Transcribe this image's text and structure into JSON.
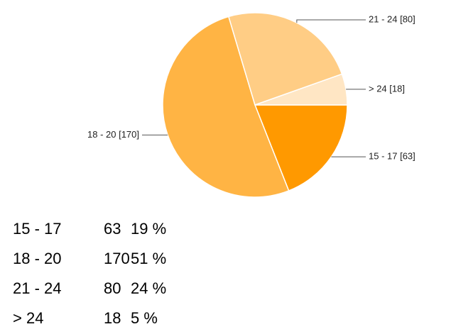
{
  "chart_data": {
    "type": "pie",
    "categories": [
      "15 - 17",
      "18 - 20",
      "21 - 24",
      "> 24"
    ],
    "values": [
      63,
      170,
      80,
      18
    ],
    "value_labels": [
      "15 - 17 [63]",
      "18 - 20 [170]",
      "21 - 24 [80]",
      "> 24 [18]"
    ],
    "colors": [
      "#ff9900",
      "#ffb444",
      "#ffcd85",
      "#ffe6c4"
    ]
  },
  "table": {
    "rows": [
      [
        "15 - 17",
        63,
        "19 %"
      ],
      [
        "18 - 20",
        170,
        "51 %"
      ],
      [
        "21 - 24",
        80,
        "24 %"
      ],
      [
        "> 24",
        18,
        "5 %"
      ]
    ]
  }
}
